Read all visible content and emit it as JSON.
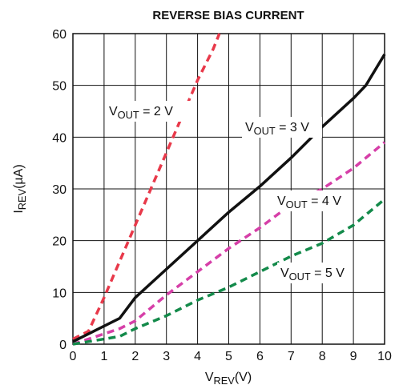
{
  "chart_data": {
    "type": "line",
    "title": "REVERSE BIAS CURRENT",
    "x_label": [
      "V",
      "REV",
      "(V)"
    ],
    "y_label": [
      "I",
      "REV",
      "(µA)"
    ],
    "xlim": [
      0,
      10
    ],
    "xticks": [
      0,
      1,
      2,
      3,
      4,
      5,
      6,
      7,
      8,
      9,
      10
    ],
    "ylim": [
      0,
      60
    ],
    "yticks": [
      0,
      10,
      20,
      30,
      40,
      50,
      60
    ],
    "grid": true,
    "series": [
      {
        "name": [
          "V",
          "OUT",
          " = 2 V"
        ],
        "color": "#e8394a",
        "dash": true,
        "x": [
          0,
          0.5,
          1,
          1.5,
          2,
          2.5,
          3,
          3.5,
          4,
          4.5,
          4.7
        ],
        "values": [
          1,
          2.5,
          9,
          16,
          23,
          30,
          37,
          44,
          51,
          57,
          60
        ]
      },
      {
        "name": [
          "V",
          "OUT",
          " = 3 V"
        ],
        "color": "#111111",
        "dash": false,
        "x": [
          0,
          1.5,
          2,
          3,
          4,
          5,
          6,
          7,
          8,
          9,
          9.4,
          10
        ],
        "values": [
          0.5,
          5,
          9,
          14.5,
          20,
          25.5,
          30.5,
          36,
          42,
          47.5,
          50,
          56
        ]
      },
      {
        "name": [
          "V",
          "OUT",
          " = 4 V"
        ],
        "color": "#d63fa8",
        "dash": true,
        "x": [
          0,
          1.5,
          2,
          3,
          4,
          5,
          6,
          7,
          8,
          9,
          10
        ],
        "values": [
          0,
          3,
          4.5,
          9.5,
          14,
          18.5,
          22.5,
          27,
          30,
          34,
          39
        ]
      },
      {
        "name": [
          "V",
          "OUT",
          " = 5 V"
        ],
        "color": "#138a4a",
        "dash": true,
        "x": [
          0,
          1.5,
          2,
          3,
          4,
          5,
          6,
          7,
          8,
          9,
          10
        ],
        "values": [
          0,
          1.5,
          3,
          5.5,
          8.5,
          11,
          14,
          17,
          19.5,
          23,
          28
        ]
      }
    ]
  }
}
